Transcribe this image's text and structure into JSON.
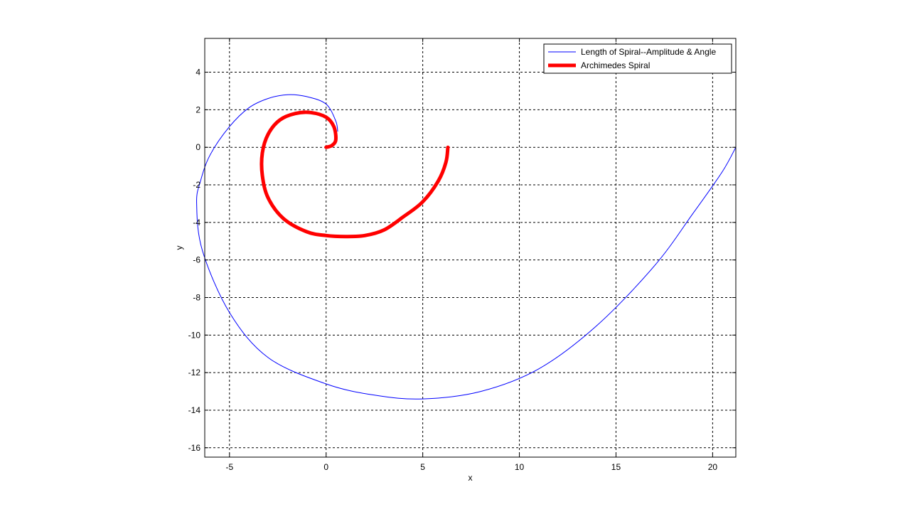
{
  "chart_data": {
    "type": "line",
    "title": "",
    "xlabel": "x",
    "ylabel": "y",
    "xlim": [
      -6.28,
      21.2
    ],
    "ylim": [
      -16.5,
      5.8
    ],
    "xticks": [
      -5,
      0,
      5,
      10,
      15,
      20
    ],
    "yticks": [
      -16,
      -14,
      -12,
      -10,
      -8,
      -6,
      -4,
      -2,
      0,
      2,
      4
    ],
    "grid": true,
    "legend_position": "top-right",
    "series": [
      {
        "name": "Length of Spiral--Amplitude & Angle",
        "color": "#0000ff",
        "style": "thin",
        "x": [
          0.6,
          0.5,
          0.0,
          -1.0,
          -2.0,
          -3.0,
          -4.0,
          -5.0,
          -6.0,
          -6.5,
          -6.7,
          -6.4,
          -5.0,
          -3.0,
          0.0,
          2.5,
          5.0,
          8.0,
          11.0,
          14.0,
          17.0,
          19.0,
          20.5,
          21.2
        ],
        "y": [
          0.85,
          1.4,
          2.3,
          2.7,
          2.8,
          2.6,
          2.1,
          1.1,
          -0.4,
          -1.8,
          -3.0,
          -5.5,
          -8.8,
          -11.2,
          -12.6,
          -13.2,
          -13.4,
          -13.0,
          -11.8,
          -9.5,
          -6.3,
          -3.5,
          -1.3,
          0.0
        ]
      },
      {
        "name": "Archimedes Spiral",
        "color": "#ff0000",
        "style": "thick",
        "x": [
          0.0,
          0.3,
          0.5,
          0.4,
          0.0,
          -0.8,
          -1.6,
          -2.4,
          -3.0,
          -3.3,
          -3.3,
          -3.0,
          -2.2,
          -1.0,
          0.0,
          1.0,
          2.0,
          3.0,
          4.0,
          5.0,
          5.8,
          6.2,
          6.3
        ],
        "y": [
          0.0,
          0.1,
          0.4,
          1.1,
          1.6,
          1.85,
          1.8,
          1.45,
          0.7,
          -0.3,
          -1.5,
          -2.7,
          -3.8,
          -4.5,
          -4.7,
          -4.75,
          -4.7,
          -4.4,
          -3.7,
          -2.9,
          -1.8,
          -0.8,
          0.0
        ]
      }
    ]
  }
}
